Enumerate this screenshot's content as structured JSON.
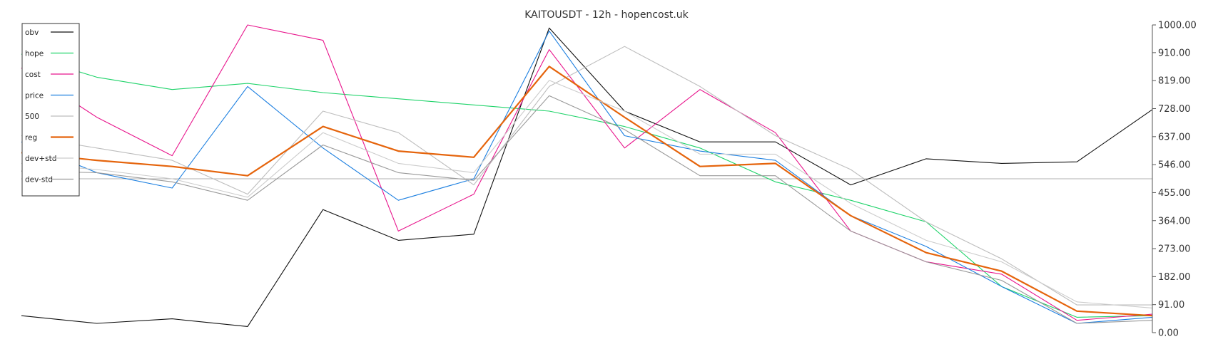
{
  "chart_data": {
    "type": "line",
    "title": "KAITOUSDT - 12h - hopencost.uk",
    "xlabel": "",
    "ylabel": "",
    "ylim": [
      0,
      1000
    ],
    "y_ticks": [
      "1000.00",
      "910.00",
      "819.00",
      "728.00",
      "637.00",
      "546.00",
      "455.00",
      "364.00",
      "273.00",
      "182.00",
      "91.00",
      "0.00"
    ],
    "legend_position": "top-left",
    "grid": false,
    "reference_line": 500,
    "x": [
      0,
      20,
      40,
      60,
      80,
      100,
      120,
      140,
      160,
      180,
      200,
      220,
      240,
      260,
      280,
      300
    ],
    "series": [
      {
        "name": "obv",
        "color": "#111111",
        "values": [
          55,
          30,
          45,
          20,
          400,
          300,
          320,
          990,
          720,
          620,
          620,
          480,
          565,
          550,
          555,
          725
        ]
      },
      {
        "name": "hope",
        "color": "#1fd36a",
        "values": [
          905,
          830,
          790,
          810,
          780,
          760,
          740,
          720,
          670,
          600,
          490,
          430,
          360,
          150,
          50,
          55
        ]
      },
      {
        "name": "cost",
        "color": "#e8148c",
        "values": [
          860,
          700,
          575,
          1000,
          950,
          330,
          450,
          920,
          600,
          790,
          650,
          330,
          230,
          190,
          40,
          60
        ]
      },
      {
        "name": "price",
        "color": "#1c7fe0",
        "values": [
          620,
          520,
          470,
          800,
          600,
          430,
          500,
          980,
          640,
          590,
          560,
          380,
          280,
          150,
          30,
          50
        ]
      },
      {
        "name": "500",
        "color": "#bdbdbd",
        "values": [
          640,
          600,
          560,
          450,
          720,
          650,
          480,
          800,
          930,
          800,
          640,
          530,
          360,
          240,
          90,
          90
        ]
      },
      {
        "name": "reg",
        "color": "#e5640c",
        "values": [
          585,
          560,
          540,
          510,
          670,
          590,
          570,
          865,
          700,
          540,
          550,
          380,
          260,
          200,
          70,
          55
        ]
      },
      {
        "name": "dev+std",
        "color": "#cccccc",
        "values": [
          550,
          530,
          500,
          440,
          650,
          550,
          520,
          820,
          720,
          580,
          580,
          420,
          300,
          230,
          100,
          80
        ]
      },
      {
        "name": "dev-std",
        "color": "#999999",
        "values": [
          525,
          520,
          490,
          430,
          610,
          520,
          495,
          770,
          660,
          510,
          510,
          330,
          230,
          170,
          30,
          40
        ]
      }
    ]
  }
}
